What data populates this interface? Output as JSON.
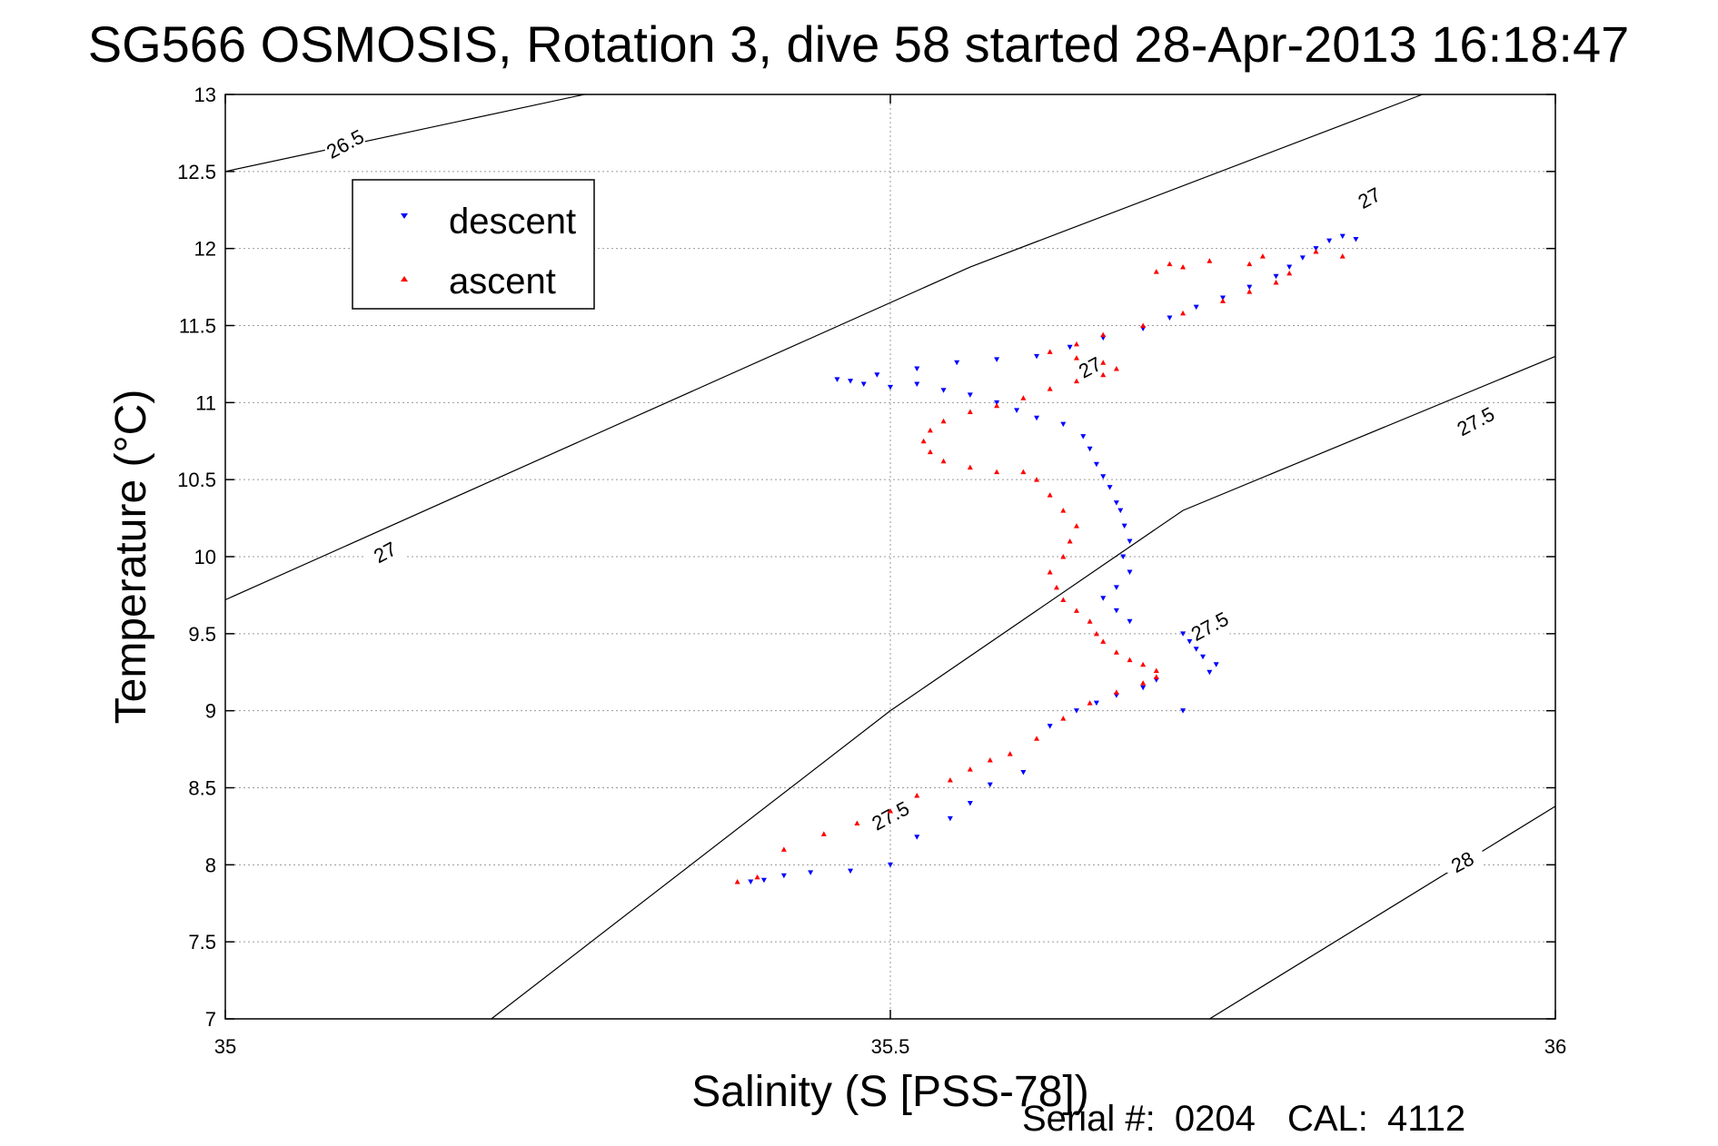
{
  "footer": {
    "serial_label": "Serial #:",
    "serial_value": "0204",
    "cal_label": "CAL:",
    "cal_value": "4112"
  },
  "colors": {
    "descent": "#0000ff",
    "ascent": "#ff0000",
    "contour": "#000000",
    "grid": "#9a9a9a"
  },
  "chart_data": {
    "type": "scatter",
    "title": "SG566 OSMOSIS, Rotation 3, dive 58 started 28-Apr-2013 16:18:47",
    "xlabel": "Salinity (S [PSS-78])",
    "ylabel": "Temperature (°C)",
    "xlim": [
      35,
      36
    ],
    "ylim": [
      7,
      13
    ],
    "x_ticks": [
      {
        "value": 35,
        "label": "35"
      },
      {
        "value": 35.5,
        "label": "35.5"
      },
      {
        "value": 36,
        "label": "36"
      }
    ],
    "y_ticks": [
      {
        "value": 7,
        "label": "7"
      },
      {
        "value": 7.5,
        "label": "7.5"
      },
      {
        "value": 8,
        "label": "8"
      },
      {
        "value": 8.5,
        "label": "8.5"
      },
      {
        "value": 9,
        "label": "9"
      },
      {
        "value": 9.5,
        "label": "9.5"
      },
      {
        "value": 10,
        "label": "10"
      },
      {
        "value": 10.5,
        "label": "10.5"
      },
      {
        "value": 11,
        "label": "11"
      },
      {
        "value": 11.5,
        "label": "11.5"
      },
      {
        "value": 12,
        "label": "12"
      },
      {
        "value": 12.5,
        "label": "12.5"
      },
      {
        "value": 13,
        "label": "13"
      }
    ],
    "grid": true,
    "legend_position": "top-left",
    "series": [
      {
        "name": "descent",
        "marker": "triangle-down",
        "color": "#0000ff",
        "points": [
          [
            35.395,
            7.89
          ],
          [
            35.405,
            7.9
          ],
          [
            35.42,
            7.93
          ],
          [
            35.44,
            7.95
          ],
          [
            35.47,
            7.96
          ],
          [
            35.5,
            8.0
          ],
          [
            35.52,
            8.18
          ],
          [
            35.545,
            8.3
          ],
          [
            35.56,
            8.4
          ],
          [
            35.575,
            8.52
          ],
          [
            35.6,
            8.6
          ],
          [
            35.62,
            8.9
          ],
          [
            35.64,
            9.0
          ],
          [
            35.655,
            9.05
          ],
          [
            35.67,
            9.1
          ],
          [
            35.69,
            9.15
          ],
          [
            35.7,
            9.2
          ],
          [
            35.72,
            9.0
          ],
          [
            35.74,
            9.25
          ],
          [
            35.745,
            9.3
          ],
          [
            35.735,
            9.35
          ],
          [
            35.73,
            9.4
          ],
          [
            35.725,
            9.45
          ],
          [
            35.72,
            9.5
          ],
          [
            35.68,
            9.58
          ],
          [
            35.67,
            9.65
          ],
          [
            35.66,
            9.73
          ],
          [
            35.67,
            9.8
          ],
          [
            35.68,
            9.9
          ],
          [
            35.675,
            10.0
          ],
          [
            35.68,
            10.1
          ],
          [
            35.676,
            10.2
          ],
          [
            35.673,
            10.3
          ],
          [
            35.67,
            10.35
          ],
          [
            35.665,
            10.45
          ],
          [
            35.66,
            10.52
          ],
          [
            35.655,
            10.6
          ],
          [
            35.65,
            10.7
          ],
          [
            35.645,
            10.78
          ],
          [
            35.63,
            10.86
          ],
          [
            35.61,
            10.9
          ],
          [
            35.595,
            10.95
          ],
          [
            35.58,
            11.0
          ],
          [
            35.56,
            11.05
          ],
          [
            35.54,
            11.08
          ],
          [
            35.52,
            11.12
          ],
          [
            35.5,
            11.1
          ],
          [
            35.48,
            11.12
          ],
          [
            35.47,
            11.14
          ],
          [
            35.46,
            11.15
          ],
          [
            35.49,
            11.18
          ],
          [
            35.52,
            11.22
          ],
          [
            35.55,
            11.26
          ],
          [
            35.58,
            11.28
          ],
          [
            35.61,
            11.3
          ],
          [
            35.635,
            11.36
          ],
          [
            35.66,
            11.42
          ],
          [
            35.69,
            11.48
          ],
          [
            35.71,
            11.55
          ],
          [
            35.73,
            11.62
          ],
          [
            35.75,
            11.68
          ],
          [
            35.77,
            11.75
          ],
          [
            35.79,
            11.82
          ],
          [
            35.8,
            11.88
          ],
          [
            35.81,
            11.94
          ],
          [
            35.82,
            12.0
          ],
          [
            35.83,
            12.05
          ],
          [
            35.84,
            12.08
          ],
          [
            35.85,
            12.06
          ]
        ]
      },
      {
        "name": "ascent",
        "marker": "triangle-up",
        "color": "#ff0000",
        "points": [
          [
            35.385,
            7.89
          ],
          [
            35.4,
            7.92
          ],
          [
            35.42,
            8.1
          ],
          [
            35.45,
            8.2
          ],
          [
            35.475,
            8.27
          ],
          [
            35.5,
            8.35
          ],
          [
            35.52,
            8.45
          ],
          [
            35.545,
            8.55
          ],
          [
            35.56,
            8.62
          ],
          [
            35.575,
            8.68
          ],
          [
            35.59,
            8.72
          ],
          [
            35.61,
            8.82
          ],
          [
            35.63,
            8.95
          ],
          [
            35.65,
            9.05
          ],
          [
            35.67,
            9.12
          ],
          [
            35.69,
            9.18
          ],
          [
            35.7,
            9.22
          ],
          [
            35.7,
            9.26
          ],
          [
            35.69,
            9.3
          ],
          [
            35.68,
            9.33
          ],
          [
            35.67,
            9.38
          ],
          [
            35.66,
            9.45
          ],
          [
            35.655,
            9.5
          ],
          [
            35.65,
            9.58
          ],
          [
            35.64,
            9.65
          ],
          [
            35.63,
            9.72
          ],
          [
            35.625,
            9.8
          ],
          [
            35.62,
            9.9
          ],
          [
            35.63,
            10.0
          ],
          [
            35.635,
            10.1
          ],
          [
            35.64,
            10.2
          ],
          [
            35.63,
            10.3
          ],
          [
            35.62,
            10.4
          ],
          [
            35.61,
            10.5
          ],
          [
            35.6,
            10.55
          ],
          [
            35.58,
            10.55
          ],
          [
            35.56,
            10.58
          ],
          [
            35.54,
            10.62
          ],
          [
            35.53,
            10.68
          ],
          [
            35.525,
            10.75
          ],
          [
            35.53,
            10.82
          ],
          [
            35.54,
            10.88
          ],
          [
            35.56,
            10.94
          ],
          [
            35.58,
            10.98
          ],
          [
            35.6,
            11.03
          ],
          [
            35.62,
            11.09
          ],
          [
            35.64,
            11.14
          ],
          [
            35.66,
            11.18
          ],
          [
            35.67,
            11.22
          ],
          [
            35.66,
            11.26
          ],
          [
            35.64,
            11.29
          ],
          [
            35.62,
            11.33
          ],
          [
            35.64,
            11.38
          ],
          [
            35.66,
            11.44
          ],
          [
            35.69,
            11.5
          ],
          [
            35.72,
            11.58
          ],
          [
            35.75,
            11.66
          ],
          [
            35.77,
            11.72
          ],
          [
            35.79,
            11.78
          ],
          [
            35.8,
            11.84
          ],
          [
            35.77,
            11.9
          ],
          [
            35.74,
            11.92
          ],
          [
            35.71,
            11.9
          ],
          [
            35.7,
            11.85
          ],
          [
            35.72,
            11.88
          ],
          [
            35.78,
            11.95
          ],
          [
            35.82,
            11.98
          ],
          [
            35.84,
            11.95
          ]
        ]
      }
    ],
    "contours": [
      {
        "label": "26.5",
        "label_positions": [
          [
            35.09,
            12.68
          ]
        ]
      },
      {
        "label": "27",
        "label_positions": [
          [
            35.12,
            10.03
          ],
          [
            35.65,
            11.23
          ],
          [
            35.86,
            12.33
          ]
        ]
      },
      {
        "label": "27.5",
        "label_positions": [
          [
            35.5,
            8.32
          ],
          [
            35.74,
            9.55
          ],
          [
            35.94,
            10.88
          ]
        ]
      },
      {
        "label": "28",
        "label_positions": [
          [
            35.93,
            8.02
          ]
        ]
      }
    ]
  }
}
